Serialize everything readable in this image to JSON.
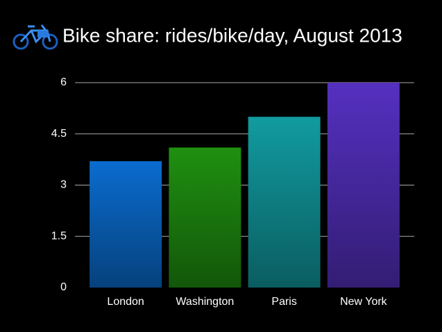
{
  "chart_data": {
    "type": "bar",
    "title": "Bike share: rides/bike/day, August 2013",
    "categories": [
      "London",
      "Washington",
      "Paris",
      "New York"
    ],
    "values": [
      3.7,
      4.1,
      5.0,
      6.0
    ],
    "colors": [
      "#0a6ccf",
      "#1f9010",
      "#119ba0",
      "#5530c0"
    ],
    "ylim": [
      0,
      6
    ],
    "yticks": [
      0,
      1.5,
      3,
      4.5,
      6
    ],
    "grid": true
  }
}
